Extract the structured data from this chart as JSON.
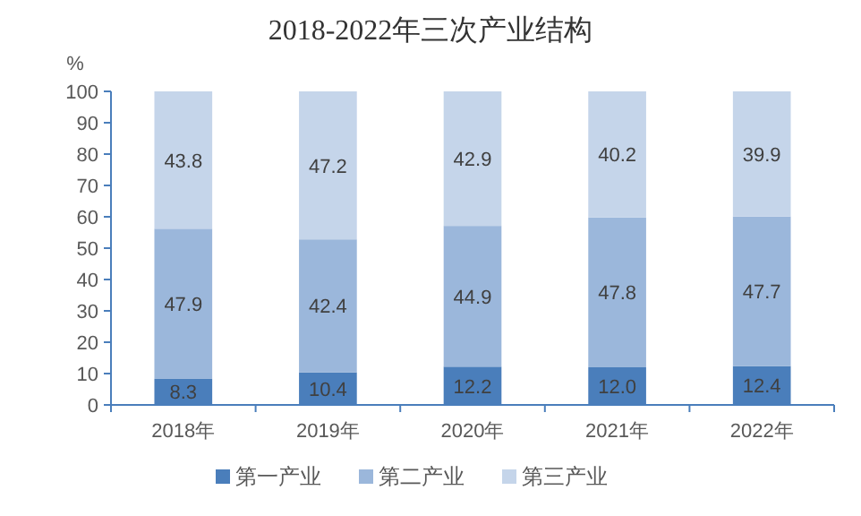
{
  "chart_data": {
    "type": "bar",
    "title": "2018-2022年三次产业结构",
    "ylabel": "%",
    "categories": [
      "2018年",
      "2019年",
      "2020年",
      "2021年",
      "2022年"
    ],
    "stacked": true,
    "legend": "bottom",
    "ylim": [
      0,
      100
    ],
    "yticks": [
      0,
      10,
      20,
      30,
      40,
      50,
      60,
      70,
      80,
      90,
      100
    ],
    "series": [
      {
        "name": "第一产业",
        "color": "#4a7ebb",
        "values": [
          8.3,
          10.4,
          12.2,
          12.0,
          12.4
        ],
        "value_labels": [
          "8.3",
          "10.4",
          "12.2",
          "12.0",
          "12.4"
        ]
      },
      {
        "name": "第二产业",
        "color": "#9bb7db",
        "values": [
          47.9,
          42.4,
          44.9,
          47.8,
          47.7
        ],
        "value_labels": [
          "47.9",
          "42.4",
          "44.9",
          "47.8",
          "47.7"
        ]
      },
      {
        "name": "第三产业",
        "color": "#c5d5ea",
        "values": [
          43.8,
          47.2,
          42.9,
          40.2,
          39.9
        ],
        "value_labels": [
          "43.8",
          "47.2",
          "42.9",
          "40.2",
          "39.9"
        ]
      }
    ]
  }
}
